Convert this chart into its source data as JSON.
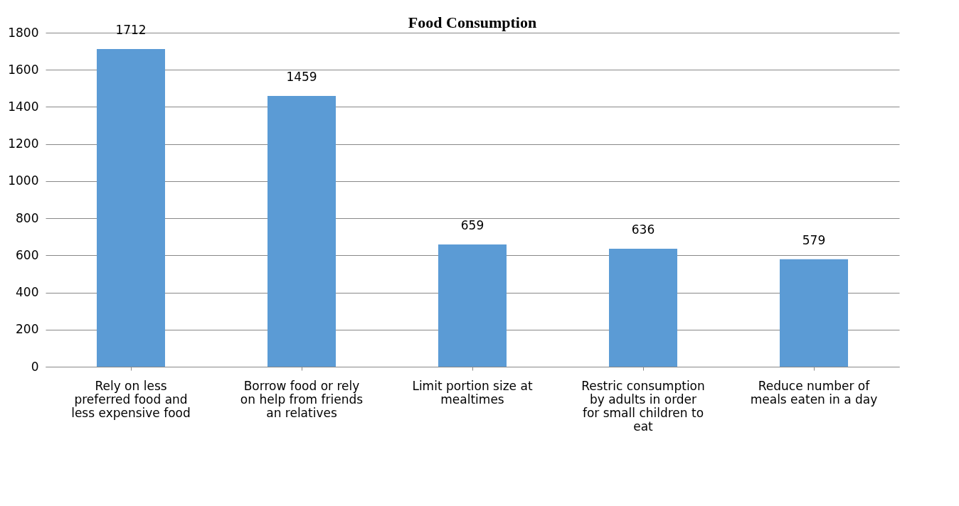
{
  "chart_data": {
    "type": "bar",
    "title": "Food Consumption",
    "categories": [
      "Rely on less preferred food and less expensive food",
      "Borrow food or rely on help from friends an relatives",
      "Limit portion size at mealtimes",
      "Restric consumption by adults in order for small children to eat",
      "Reduce number of meals eaten in a day"
    ],
    "values": [
      1712,
      1459,
      659,
      636,
      579
    ],
    "color": "#5b9bd5",
    "ylim": [
      0,
      1800
    ],
    "yticks": [
      0,
      200,
      400,
      600,
      800,
      1000,
      1200,
      1400,
      1600,
      1800
    ],
    "grid": "y",
    "data_labels": true
  }
}
